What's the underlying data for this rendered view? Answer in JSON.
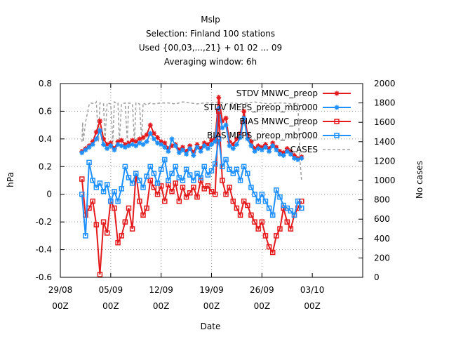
{
  "chart_data": {
    "type": "line",
    "title_lines": [
      "Mslp",
      "Selection: Finland     100 stations",
      "Used {00,03,...,21} + 01 02 ... 09",
      "Averaging window:  6h"
    ],
    "xlabel": "Date",
    "ylabel": "hPa",
    "y2label": "No cases",
    "xlim": [
      0,
      42
    ],
    "ylim": [
      -0.6,
      0.8
    ],
    "y2lim": [
      0,
      2000
    ],
    "xticks": [
      {
        "x": 0,
        "line1": "29/08",
        "line2": "00Z"
      },
      {
        "x": 7,
        "line1": "05/09",
        "line2": "00Z"
      },
      {
        "x": 14,
        "line1": "12/09",
        "line2": "00Z"
      },
      {
        "x": 21,
        "line1": "19/09",
        "line2": "00Z"
      },
      {
        "x": 28,
        "line1": "26/09",
        "line2": "00Z"
      },
      {
        "x": 35,
        "line1": "03/10",
        "line2": "00Z"
      }
    ],
    "yticks": [
      "-0.6",
      "-0.4",
      "-0.2",
      "0",
      "0.2",
      "0.4",
      "0.6",
      "0.8"
    ],
    "y2ticks": [
      "0",
      "200",
      "400",
      "600",
      "800",
      "1000",
      "1200",
      "1400",
      "1600",
      "1800",
      "2000"
    ],
    "grid": true,
    "legend_position": "top-right",
    "series": [
      {
        "name": "STDV MNWC_preop",
        "axis": "y",
        "color": "#e41a1c",
        "marker": "star",
        "x": [
          3.0,
          3.5,
          4.0,
          4.5,
          5.0,
          5.5,
          6.0,
          6.5,
          7.0,
          7.5,
          8.0,
          8.5,
          9.0,
          9.5,
          10.0,
          10.5,
          11.0,
          11.5,
          12.0,
          12.5,
          13.0,
          13.5,
          14.0,
          14.5,
          15.0,
          15.5,
          16.0,
          16.5,
          17.0,
          17.5,
          18.0,
          18.5,
          19.0,
          19.5,
          20.0,
          20.5,
          21.0,
          21.5,
          22.0,
          22.5,
          23.0,
          23.5,
          24.0,
          24.5,
          25.0,
          25.5,
          26.0,
          26.5,
          27.0,
          27.5,
          28.0,
          28.5,
          29.0,
          29.5,
          30.0,
          30.5,
          31.0,
          31.5,
          32.0,
          32.5,
          33.0,
          33.5
        ],
        "values": [
          0.31,
          0.33,
          0.35,
          0.38,
          0.45,
          0.53,
          0.4,
          0.36,
          0.37,
          0.33,
          0.38,
          0.39,
          0.36,
          0.37,
          0.39,
          0.38,
          0.4,
          0.41,
          0.43,
          0.5,
          0.44,
          0.41,
          0.38,
          0.37,
          0.33,
          0.35,
          0.36,
          0.32,
          0.34,
          0.31,
          0.35,
          0.3,
          0.36,
          0.33,
          0.37,
          0.36,
          0.39,
          0.4,
          0.7,
          0.53,
          0.55,
          0.38,
          0.36,
          0.4,
          0.44,
          0.6,
          0.43,
          0.38,
          0.33,
          0.35,
          0.34,
          0.36,
          0.33,
          0.37,
          0.34,
          0.31,
          0.3,
          0.33,
          0.31,
          0.28,
          0.26,
          0.27
        ]
      },
      {
        "name": "STDV MEPS_preop_mbr000",
        "axis": "y",
        "color": "#1e90ff",
        "marker": "star",
        "x": [
          3.0,
          3.5,
          4.0,
          4.5,
          5.0,
          5.5,
          6.0,
          6.5,
          7.0,
          7.5,
          8.0,
          8.5,
          9.0,
          9.5,
          10.0,
          10.5,
          11.0,
          11.5,
          12.0,
          12.5,
          13.0,
          13.5,
          14.0,
          14.5,
          15.0,
          15.5,
          16.0,
          16.5,
          17.0,
          17.5,
          18.0,
          18.5,
          19.0,
          19.5,
          20.0,
          20.5,
          21.0,
          21.5,
          22.0,
          22.5,
          23.0,
          23.5,
          24.0,
          24.5,
          25.0,
          25.5,
          26.0,
          26.5,
          27.0,
          27.5,
          28.0,
          28.5,
          29.0,
          29.5,
          30.0,
          30.5,
          31.0,
          31.5,
          32.0,
          32.5,
          33.0,
          33.5
        ],
        "values": [
          0.3,
          0.32,
          0.34,
          0.36,
          0.4,
          0.46,
          0.36,
          0.33,
          0.35,
          0.32,
          0.36,
          0.35,
          0.34,
          0.35,
          0.36,
          0.35,
          0.37,
          0.36,
          0.38,
          0.44,
          0.4,
          0.37,
          0.36,
          0.34,
          0.31,
          0.4,
          0.35,
          0.3,
          0.32,
          0.29,
          0.33,
          0.28,
          0.34,
          0.31,
          0.35,
          0.33,
          0.36,
          0.38,
          0.62,
          0.48,
          0.5,
          0.35,
          0.33,
          0.36,
          0.41,
          0.55,
          0.4,
          0.35,
          0.31,
          0.33,
          0.32,
          0.34,
          0.31,
          0.35,
          0.32,
          0.29,
          0.28,
          0.31,
          0.29,
          0.26,
          0.25,
          0.26
        ]
      },
      {
        "name": "BIAS MNWC_preop",
        "axis": "y",
        "color": "#e41a1c",
        "marker": "square",
        "x": [
          3.0,
          3.5,
          4.0,
          4.5,
          5.0,
          5.5,
          6.0,
          6.5,
          7.0,
          7.5,
          8.0,
          8.5,
          9.0,
          9.5,
          10.0,
          10.5,
          11.0,
          11.5,
          12.0,
          12.5,
          13.0,
          13.5,
          14.0,
          14.5,
          15.0,
          15.5,
          16.0,
          16.5,
          17.0,
          17.5,
          18.0,
          18.5,
          19.0,
          19.5,
          20.0,
          20.5,
          21.0,
          21.5,
          22.0,
          22.5,
          23.0,
          23.5,
          24.0,
          24.5,
          25.0,
          25.5,
          26.0,
          26.5,
          27.0,
          27.5,
          28.0,
          28.5,
          29.0,
          29.5,
          30.0,
          30.5,
          31.0,
          31.5,
          32.0,
          32.5,
          33.0,
          33.5
        ],
        "values": [
          0.11,
          -0.15,
          -0.1,
          -0.05,
          -0.22,
          -0.58,
          -0.2,
          -0.28,
          -0.05,
          -0.1,
          -0.35,
          -0.3,
          -0.2,
          -0.1,
          -0.25,
          0.15,
          -0.05,
          -0.15,
          -0.1,
          0.1,
          0.05,
          0.0,
          0.06,
          -0.05,
          0.07,
          0.02,
          0.08,
          -0.05,
          0.05,
          -0.02,
          0.01,
          0.05,
          -0.02,
          0.1,
          0.04,
          0.06,
          0.02,
          0.0,
          0.6,
          0.1,
          0.0,
          0.05,
          -0.05,
          -0.1,
          -0.15,
          -0.05,
          -0.08,
          -0.15,
          -0.2,
          -0.25,
          -0.2,
          -0.3,
          -0.38,
          -0.42,
          -0.3,
          -0.25,
          -0.1,
          -0.2,
          -0.25,
          -0.15,
          -0.1,
          -0.05
        ]
      },
      {
        "name": "BIAS MEPS_preop_mbr000",
        "axis": "y",
        "color": "#1e90ff",
        "marker": "square",
        "x": [
          3.0,
          3.5,
          4.0,
          4.5,
          5.0,
          5.5,
          6.0,
          6.5,
          7.0,
          7.5,
          8.0,
          8.5,
          9.0,
          9.5,
          10.0,
          10.5,
          11.0,
          11.5,
          12.0,
          12.5,
          13.0,
          13.5,
          14.0,
          14.5,
          15.0,
          15.5,
          16.0,
          16.5,
          17.0,
          17.5,
          18.0,
          18.5,
          19.0,
          19.5,
          20.0,
          20.5,
          21.0,
          21.5,
          22.0,
          22.5,
          23.0,
          23.5,
          24.0,
          24.5,
          25.0,
          25.5,
          26.0,
          26.5,
          27.0,
          27.5,
          28.0,
          28.5,
          29.0,
          29.5,
          30.0,
          30.5,
          31.0,
          31.5,
          32.0,
          32.5,
          33.0,
          33.5
        ],
        "values": [
          0.0,
          -0.3,
          0.23,
          0.1,
          0.05,
          0.08,
          0.02,
          0.07,
          -0.05,
          0.02,
          -0.05,
          0.04,
          0.2,
          0.12,
          0.08,
          0.15,
          0.1,
          0.05,
          0.13,
          0.2,
          0.15,
          0.08,
          0.18,
          0.25,
          0.1,
          0.15,
          0.2,
          0.12,
          0.1,
          0.18,
          0.14,
          0.1,
          0.15,
          0.12,
          0.2,
          0.14,
          0.17,
          0.22,
          0.4,
          0.2,
          0.25,
          0.18,
          0.15,
          0.18,
          0.1,
          0.2,
          0.15,
          0.05,
          0.0,
          -0.05,
          0.0,
          -0.05,
          -0.1,
          -0.15,
          0.03,
          -0.02,
          -0.08,
          -0.1,
          -0.12,
          -0.15,
          -0.05,
          -0.1
        ]
      },
      {
        "name": "CASES",
        "axis": "y2",
        "color": "#a0a0a0",
        "marker": "none",
        "dash": true,
        "x": [
          3.0,
          3.1,
          3.2,
          3.5,
          4.0,
          4.2,
          4.8,
          5.0,
          5.3,
          5.5,
          6.0,
          6.2,
          6.5,
          7.0,
          7.3,
          7.5,
          8.0,
          8.2,
          8.5,
          9.0,
          9.3,
          9.5,
          10.0,
          10.3,
          10.5,
          11.0,
          11.3,
          11.5,
          12.0,
          12.5,
          13.0,
          14.0,
          15.0,
          16.0,
          17.0,
          18.0,
          19.0,
          20.0,
          21.0,
          22.0,
          23.0,
          24.0,
          25.0,
          26.0,
          27.0,
          28.0,
          29.0,
          30.0,
          31.0,
          32.0,
          33.0,
          33.3,
          33.5
        ],
        "values": [
          1400,
          1600,
          1400,
          1600,
          1780,
          1800,
          1790,
          1810,
          1400,
          1800,
          1790,
          1400,
          1800,
          1790,
          1400,
          1810,
          1800,
          1400,
          1790,
          1800,
          1400,
          1800,
          1790,
          1400,
          1800,
          1790,
          1400,
          1800,
          1780,
          1800,
          1790,
          1800,
          1800,
          1790,
          1810,
          1800,
          1790,
          1800,
          1800,
          1810,
          1790,
          1800,
          1790,
          1800,
          1810,
          1800,
          1790,
          1800,
          1800,
          1790,
          1800,
          1200,
          1000
        ]
      }
    ]
  }
}
